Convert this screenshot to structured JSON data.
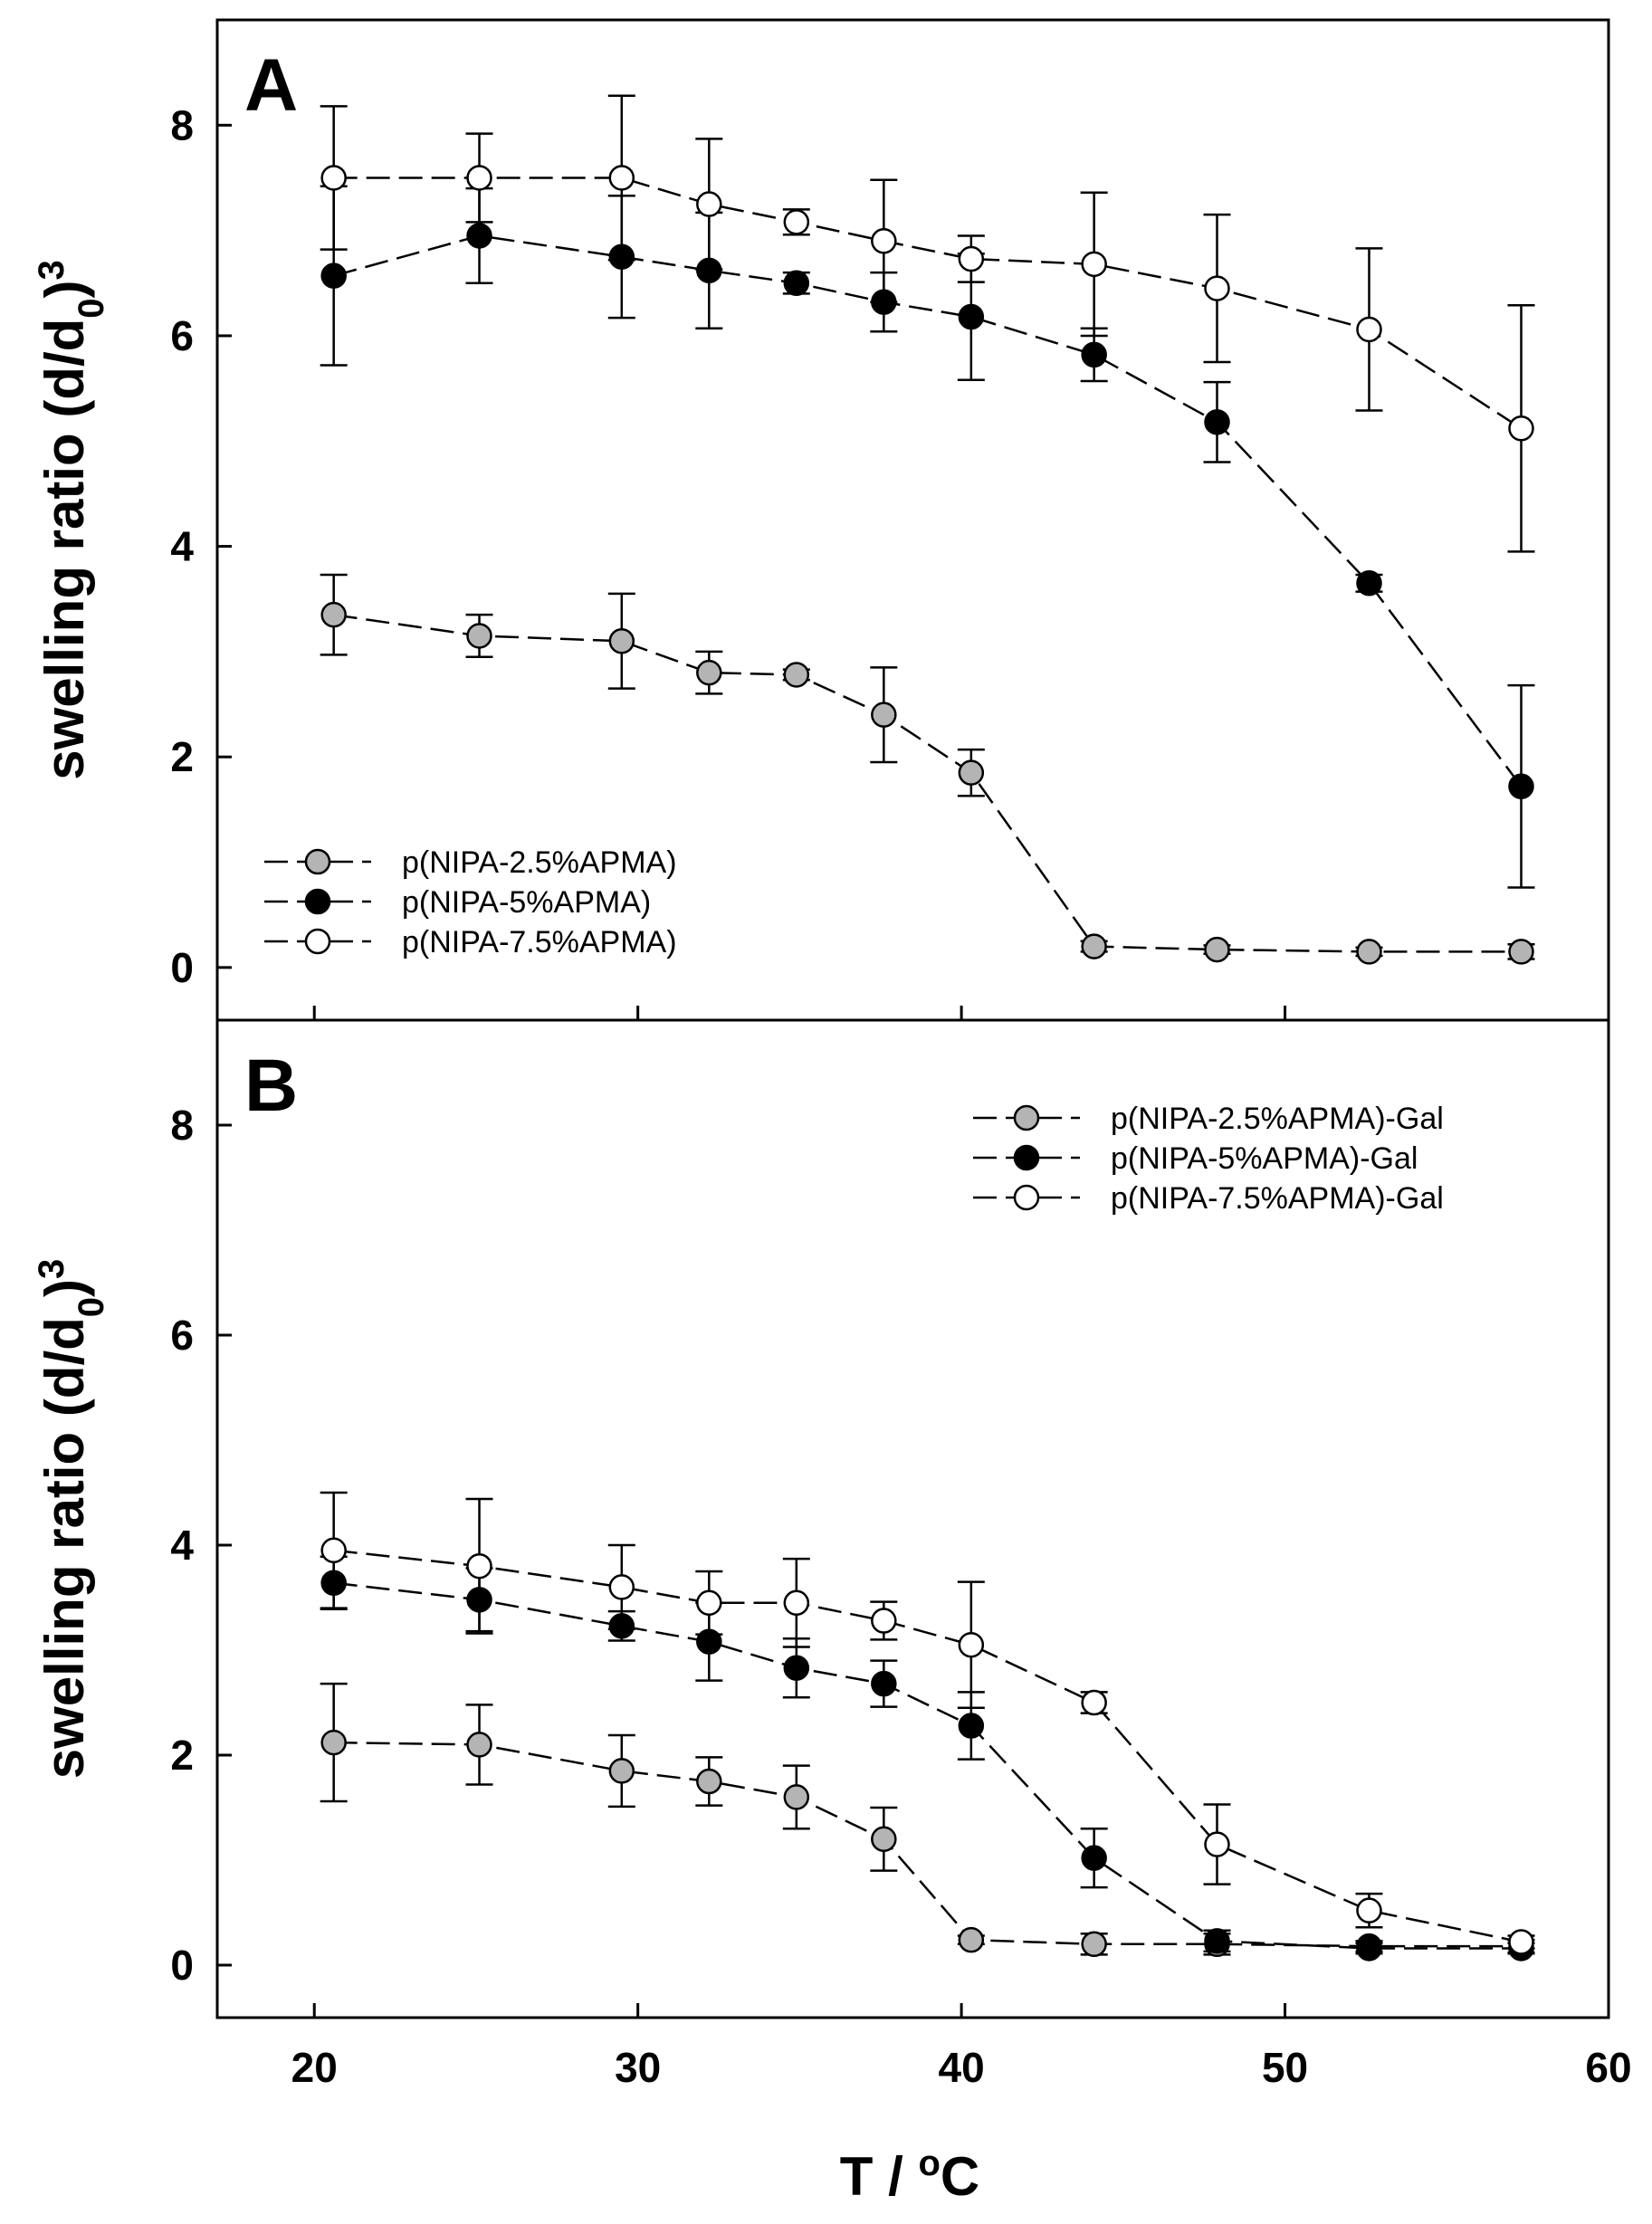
{
  "chart_data": [
    {
      "type": "line",
      "panel_label": "A",
      "ylabel": "swelling ratio (d/d",
      "ylabel_sub": "0",
      "ylabel_close": ")",
      "ylabel_sup": "3",
      "xlim": [
        17,
        60
      ],
      "ylim": [
        -0.5,
        9.0
      ],
      "yticks": [
        "0",
        "2",
        "4",
        "6",
        "8"
      ],
      "legend_position": "bottom-left",
      "x": [
        20.6,
        25.1,
        29.5,
        32.2,
        34.9,
        37.6,
        40.3,
        44.1,
        47.9,
        52.6,
        57.3
      ],
      "series": [
        {
          "name": "p(NIPA-2.5%APMA)",
          "marker": "gray",
          "values": [
            3.35,
            3.15,
            3.1,
            2.8,
            2.78,
            2.4,
            1.85,
            0.2,
            0.17,
            0.15,
            0.15
          ],
          "errors": [
            0.38,
            0.2,
            0.45,
            0.2,
            0.05,
            0.45,
            0.22,
            0.05,
            0.04,
            0.04,
            0.07
          ]
        },
        {
          "name": "p(NIPA-5%APMA)",
          "marker": "black",
          "values": [
            6.57,
            6.95,
            6.75,
            6.62,
            6.5,
            6.32,
            6.18,
            5.82,
            5.18,
            3.65,
            1.72
          ],
          "errors": [
            0.85,
            0.45,
            0.58,
            0.55,
            0.1,
            0.28,
            0.6,
            0.25,
            0.38,
            0.08,
            0.96
          ]
        },
        {
          "name": "p(NIPA-7.5%APMA)",
          "marker": "white",
          "values": [
            7.5,
            7.5,
            7.5,
            7.25,
            7.08,
            6.9,
            6.73,
            6.68,
            6.45,
            6.06,
            5.12
          ],
          "errors": [
            0.68,
            0.42,
            0.78,
            0.62,
            0.12,
            0.58,
            0.22,
            0.68,
            0.7,
            0.77,
            1.17
          ]
        }
      ]
    },
    {
      "type": "line",
      "panel_label": "B",
      "ylabel": "swelling ratio (d/d",
      "ylabel_sub": "0",
      "ylabel_close": ")",
      "ylabel_sup": "3",
      "xlabel": "T / ",
      "xlabel_sup": "o",
      "xlabel_unit": "C",
      "xlim": [
        17,
        60
      ],
      "ylim": [
        -0.5,
        9.0
      ],
      "xticks": [
        "20",
        "30",
        "40",
        "50",
        "60"
      ],
      "yticks": [
        "0",
        "2",
        "4",
        "6",
        "8"
      ],
      "legend_position": "top-right",
      "x": [
        20.6,
        25.1,
        29.5,
        32.2,
        34.9,
        37.6,
        40.3,
        44.1,
        47.9,
        52.6,
        57.3
      ],
      "series": [
        {
          "name": "p(NIPA-2.5%APMA)-Gal",
          "marker": "gray",
          "values": [
            2.12,
            2.1,
            1.85,
            1.75,
            1.6,
            1.2,
            0.24,
            0.2,
            0.2,
            0.18,
            0.18
          ],
          "errors": [
            0.56,
            0.38,
            0.34,
            0.23,
            0.3,
            0.3,
            0.04,
            0.1,
            0.1,
            0.05,
            0.06
          ]
        },
        {
          "name": "p(NIPA-5%APMA)-Gal",
          "marker": "black",
          "values": [
            3.64,
            3.48,
            3.23,
            3.08,
            2.83,
            2.68,
            2.28,
            1.02,
            0.23,
            0.16,
            0.16
          ],
          "errors": [
            0.25,
            0.3,
            0.14,
            0.37,
            0.28,
            0.22,
            0.32,
            0.28,
            0.1,
            0.05,
            0.05
          ]
        },
        {
          "name": "p(NIPA-7.5%APMA)-Gal",
          "marker": "white",
          "values": [
            3.95,
            3.8,
            3.6,
            3.45,
            3.45,
            3.28,
            3.05,
            2.5,
            1.15,
            0.52,
            0.22
          ],
          "errors": [
            0.55,
            0.64,
            0.4,
            0.3,
            0.42,
            0.18,
            0.6,
            0.1,
            0.38,
            0.16,
            0.06
          ]
        }
      ]
    }
  ],
  "colors": {
    "gray_marker": "#b4b4b4",
    "black_marker": "#000000",
    "white_marker": "#ffffff",
    "axis": "#000000"
  }
}
